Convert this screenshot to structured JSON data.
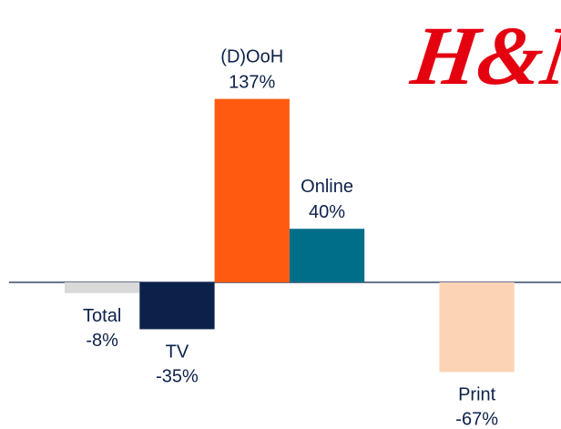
{
  "logo": "H&M",
  "chart_data": {
    "type": "bar",
    "categories": [
      "Total",
      "TV",
      "(D)OoH",
      "Online",
      "Print"
    ],
    "values": [
      -8,
      -35,
      137,
      40,
      -67
    ],
    "value_labels": [
      "-8%",
      "-35%",
      "137%",
      "40%",
      "-67%"
    ],
    "colors": [
      "#d9d9d9",
      "#0c2149",
      "#ff5a0f",
      "#006e89",
      "#fcd3b5"
    ]
  }
}
